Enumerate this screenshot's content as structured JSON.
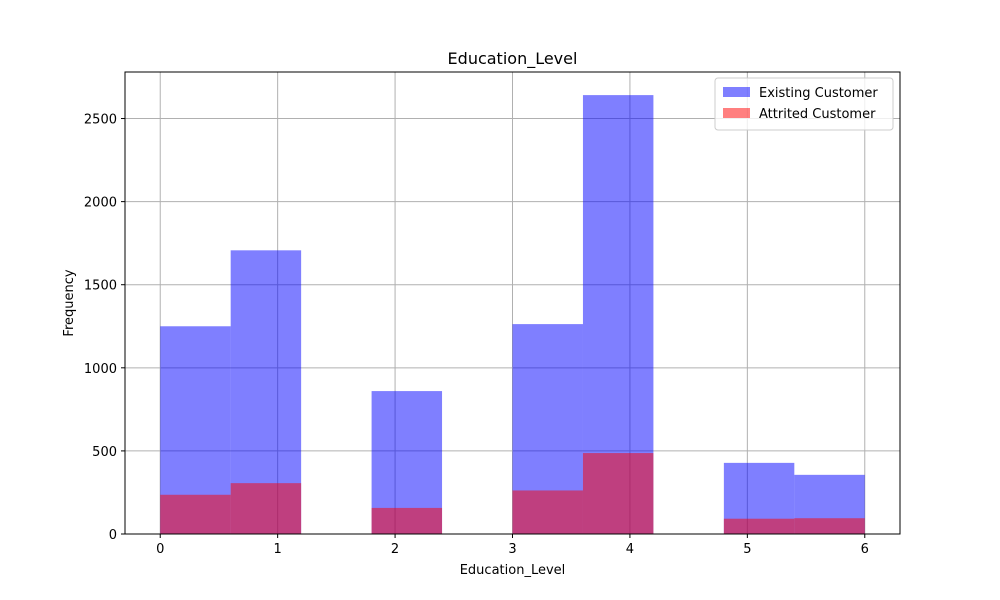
{
  "chart_data": {
    "type": "histogram",
    "title": "Education_Level",
    "xlabel": "Education_Level",
    "ylabel": "Frequency",
    "xlim": [
      -0.3,
      6.3
    ],
    "ylim": [
      0,
      2780
    ],
    "xticks": [
      0,
      1,
      2,
      3,
      4,
      5,
      6
    ],
    "yticks": [
      0,
      500,
      1000,
      1500,
      2000,
      2500
    ],
    "grid": true,
    "legend_position": "top-right",
    "bin_edges": [
      0,
      0.6,
      1.2,
      1.8,
      2.4,
      3.0,
      3.6,
      4.2,
      4.8,
      5.4,
      6.0
    ],
    "series": [
      {
        "name": "Existing Customer",
        "color": "#0000ff",
        "alpha": 0.5,
        "values": [
          1250,
          1707,
          0,
          860,
          0,
          1263,
          2641,
          0,
          428,
          356
        ]
      },
      {
        "name": "Attrited Customer",
        "color": "#ff0000",
        "alpha": 0.5,
        "values": [
          236,
          306,
          0,
          157,
          0,
          262,
          487,
          0,
          92,
          95
        ]
      }
    ]
  }
}
